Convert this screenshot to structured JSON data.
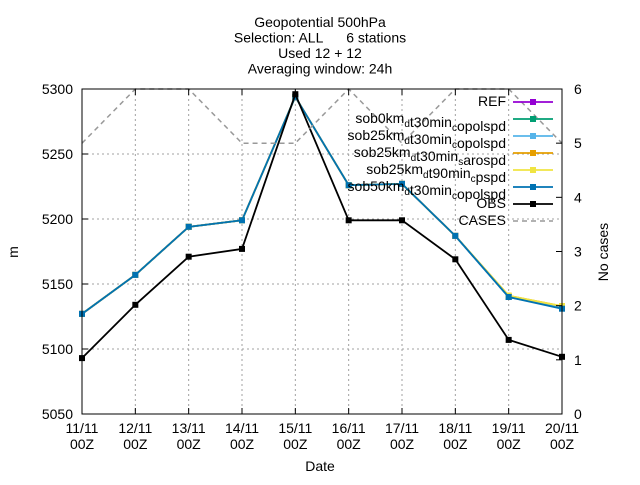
{
  "chart_data": {
    "type": "line",
    "title_lines": [
      "Geopotential 500hPa",
      "Selection: ALL      6 stations",
      "Used 12 + 12",
      "Averaging window: 24h"
    ],
    "xlabel": "Date",
    "ylabel": "m",
    "y2label": "No cases",
    "categories": [
      {
        "day": "11/11",
        "hour": "00Z"
      },
      {
        "day": "12/11",
        "hour": "00Z"
      },
      {
        "day": "13/11",
        "hour": "00Z"
      },
      {
        "day": "14/11",
        "hour": "00Z"
      },
      {
        "day": "15/11",
        "hour": "00Z"
      },
      {
        "day": "16/11",
        "hour": "00Z"
      },
      {
        "day": "17/11",
        "hour": "00Z"
      },
      {
        "day": "18/11",
        "hour": "00Z"
      },
      {
        "day": "19/11",
        "hour": "00Z"
      },
      {
        "day": "20/11",
        "hour": "00Z"
      }
    ],
    "ylim": [
      5050,
      5300
    ],
    "yticks": [
      5050,
      5100,
      5150,
      5200,
      5250,
      5300
    ],
    "y2lim": [
      0,
      6
    ],
    "y2ticks": [
      0,
      1,
      2,
      3,
      4,
      5,
      6
    ],
    "grid": true,
    "legend_position": "top-right",
    "series": [
      {
        "name": "REF",
        "name_parts": [
          [
            "REF",
            ""
          ]
        ],
        "color": "#9400d3",
        "marker": "square",
        "dash": false,
        "axis": "y",
        "values": [
          5127,
          5157,
          5194,
          5199,
          5294,
          5226,
          5227,
          5187,
          5140,
          5132
        ]
      },
      {
        "name": "sob0km_d t30min_c opolspd",
        "name_parts": [
          [
            "sob0km",
            ""
          ],
          [
            "d",
            "sub"
          ],
          [
            "t30min",
            ""
          ],
          [
            "c",
            "sub"
          ],
          [
            "opolspd",
            ""
          ]
        ],
        "color": "#009e73",
        "marker": "square",
        "dash": false,
        "axis": "y",
        "values": [
          5127,
          5157,
          5194,
          5199,
          5294,
          5226,
          5227,
          5187,
          5140,
          5132
        ]
      },
      {
        "name": "sob25km_d t30min_c opolspd",
        "name_parts": [
          [
            "sob25km",
            ""
          ],
          [
            "d",
            "sub"
          ],
          [
            "t30min",
            ""
          ],
          [
            "c",
            "sub"
          ],
          [
            "opolspd",
            ""
          ]
        ],
        "color": "#56b4e9",
        "marker": "square",
        "dash": false,
        "axis": "y",
        "values": [
          5127,
          5157,
          5194,
          5199,
          5294,
          5226,
          5227,
          5187,
          5140,
          5132
        ]
      },
      {
        "name": "sob25km_d t30min_s arospd",
        "name_parts": [
          [
            "sob25km",
            ""
          ],
          [
            "d",
            "sub"
          ],
          [
            "t30min",
            ""
          ],
          [
            "s",
            "sub"
          ],
          [
            "arospd",
            ""
          ]
        ],
        "color": "#e69f00",
        "marker": "square",
        "dash": false,
        "axis": "y",
        "values": [
          5127,
          5157,
          5194,
          5199,
          5294,
          5226,
          5227,
          5187,
          5141,
          5133
        ]
      },
      {
        "name": "sob25km_d t90min_c pspd",
        "name_parts": [
          [
            "sob25km",
            ""
          ],
          [
            "d",
            "sub"
          ],
          [
            "t90min",
            ""
          ],
          [
            "c",
            "sub"
          ],
          [
            "pspd",
            ""
          ]
        ],
        "color": "#f0e442",
        "marker": "square",
        "dash": false,
        "axis": "y",
        "values": [
          5127,
          5157,
          5194,
          5199,
          5294,
          5226,
          5227,
          5187,
          5141,
          5133
        ]
      },
      {
        "name": "sob50km_d t30min_c opolspd",
        "name_parts": [
          [
            "sob50km",
            ""
          ],
          [
            "d",
            "sub"
          ],
          [
            "t30min",
            ""
          ],
          [
            "c",
            "sub"
          ],
          [
            "opolspd",
            ""
          ]
        ],
        "color": "#0072b2",
        "marker": "square",
        "dash": false,
        "axis": "y",
        "values": [
          5127,
          5157,
          5194,
          5199,
          5294,
          5226,
          5227,
          5187,
          5140,
          5131
        ]
      },
      {
        "name": "OBS",
        "name_parts": [
          [
            "OBS",
            ""
          ]
        ],
        "color": "#000000",
        "marker": "square",
        "dash": false,
        "axis": "y",
        "values": [
          5093,
          5134,
          5171,
          5177,
          5296,
          5199,
          5199,
          5169,
          5107,
          5094
        ]
      },
      {
        "name": "CASES",
        "name_parts": [
          [
            "CASES",
            ""
          ]
        ],
        "color": "#999999",
        "marker": "none",
        "dash": true,
        "axis": "y2",
        "values": [
          5,
          6,
          6,
          5,
          5,
          6,
          5,
          6,
          6,
          5
        ]
      }
    ]
  }
}
